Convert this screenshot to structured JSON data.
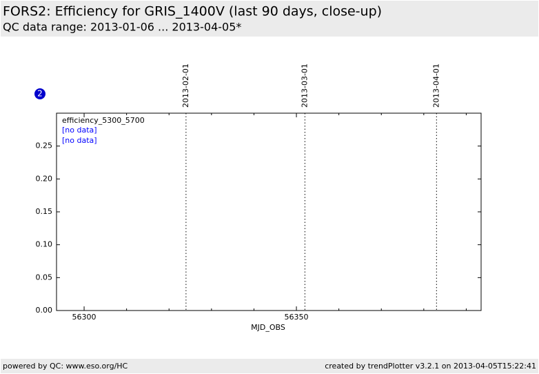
{
  "header": {
    "title": "FORS2: Efficiency for GRIS_1400V (last 90 days, close-up)",
    "subtitle": "QC data range: 2013-01-06 ... 2013-04-05*"
  },
  "panel_number": "2",
  "chart_data": {
    "type": "scatter",
    "x_label": "MJD_OBS",
    "xlim": [
      56293.5,
      56393.5
    ],
    "xticks": [
      56300,
      56350
    ],
    "x_minor_ticks": [
      56310,
      56320,
      56330,
      56340,
      56360,
      56370,
      56380,
      56390
    ],
    "ylim": [
      0,
      0.3
    ],
    "yticks": [
      {
        "value": 0,
        "label": "0.00"
      },
      0.05,
      {
        "value": 0.1,
        "label": "0.10"
      },
      0.15,
      {
        "value": 0.2,
        "label": "0.20"
      },
      0.25
    ],
    "date_markers": [
      {
        "value": 56324,
        "label": "2013-02-01"
      },
      {
        "value": 56352,
        "label": "2013-03-01"
      },
      {
        "value": 56383,
        "label": "2013-04-01"
      }
    ],
    "legend_title": "efficiency_5300_5700",
    "annotations": [
      "[no data]",
      "[no data]"
    ],
    "annotation_color": "#0000ff"
  },
  "footer": {
    "left": "powered by QC: www.eso.org/HC",
    "right": "created by trendPlotter v3.2.1 on 2013-04-05T15:22:41"
  }
}
